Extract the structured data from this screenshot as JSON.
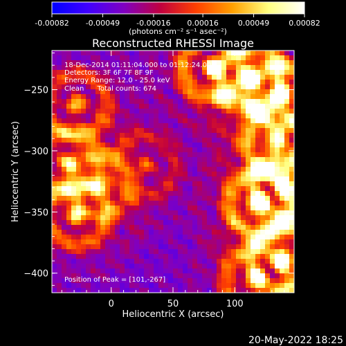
{
  "chart_data": {
    "type": "heatmap",
    "title": "Reconstructed RHESSI Image",
    "xlabel": "Heliocentric X (arcsec)",
    "ylabel": "Heliocentric Y (arcsec)",
    "xlim": [
      -48,
      148
    ],
    "ylim": [
      -416,
      -218
    ],
    "x_ticks": [
      0,
      50,
      100
    ],
    "y_ticks": [
      -250,
      -300,
      -350,
      -400
    ],
    "colorbar": {
      "range": [
        -0.00082,
        0.00082
      ],
      "tick_labels": [
        "-0.00082",
        "-0.00049",
        "-0.00016",
        "0.00016",
        "0.00049",
        "0.00082"
      ],
      "tick_values": [
        -0.00082,
        -0.00049,
        -0.00016,
        0.00016,
        0.00049,
        0.00082
      ],
      "unit_label": "(photons cm⁻² s⁻¹ asec⁻²)",
      "colors": [
        "#0000ff",
        "#4000ff",
        "#8000c0",
        "#c00040",
        "#ff4000",
        "#ffa000",
        "#ffff80",
        "#ffffff"
      ]
    },
    "annotations": [
      "18-Dec-2014 01:11:04.000 to 01:12:24.000",
      "Detectors: 3F 6F 7F 8F 9F",
      "Energy Range: 12.0 - 25.0 keV",
      "Clean      Total counts: 674"
    ],
    "peak_label": "Position of Peak = [101,-267]",
    "peak": [
      101,
      -267
    ],
    "hotspots": [
      {
        "x": 82,
        "y": -232,
        "strength": 1.0
      },
      {
        "x": 112,
        "y": -240,
        "strength": 1.0
      },
      {
        "x": 138,
        "y": -255,
        "strength": 1.0
      },
      {
        "x": 134,
        "y": -292,
        "strength": 0.9
      },
      {
        "x": 120,
        "y": -342,
        "strength": 1.0
      },
      {
        "x": 140,
        "y": -330,
        "strength": 0.95
      },
      {
        "x": 138,
        "y": -390,
        "strength": 0.9
      },
      {
        "x": 118,
        "y": -404,
        "strength": 0.8
      },
      {
        "x": -28,
        "y": -262,
        "strength": 0.7
      },
      {
        "x": -35,
        "y": -310,
        "strength": 0.7
      },
      {
        "x": -8,
        "y": -328,
        "strength": 0.55
      },
      {
        "x": -28,
        "y": -352,
        "strength": 0.8
      },
      {
        "x": 28,
        "y": -312,
        "strength": 0.45
      }
    ]
  },
  "footer": {
    "date": "20-May-2022 18:25"
  }
}
